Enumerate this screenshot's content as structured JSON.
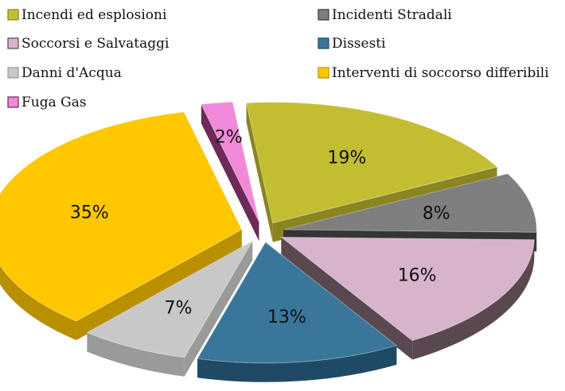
{
  "chart_data": {
    "type": "pie",
    "style": "3d-exploded",
    "legend_position": "top",
    "title": "",
    "slices": [
      {
        "label": "Incendi ed esplosioni",
        "value": 19,
        "display": "19%",
        "color": "#c3bd32",
        "side_color": "#8a8520"
      },
      {
        "label": "Incidenti Stradali",
        "value": 8,
        "display": "8%",
        "color": "#7f7f7f",
        "side_color": "#353535"
      },
      {
        "label": "Soccorsi e Salvataggi",
        "value": 16,
        "display": "16%",
        "color": "#d7b3cc",
        "side_color": "#5a4850"
      },
      {
        "label": "Dissesti",
        "value": 13,
        "display": "13%",
        "color": "#3a7699",
        "side_color": "#1f4a66"
      },
      {
        "label": "Danni d'Acqua",
        "value": 7,
        "display": "7%",
        "color": "#c8c8c8",
        "side_color": "#9a9a9a"
      },
      {
        "label": "Interventi di soccorso differibili",
        "value": 35,
        "display": "35%",
        "color": "#fec700",
        "side_color": "#b98f00"
      },
      {
        "label": "Fuga Gas",
        "value": 2,
        "display": "2%",
        "color": "#f08ad8",
        "side_color": "#6e2a58"
      }
    ],
    "legend_order": [
      0,
      1,
      2,
      3,
      4,
      5,
      6
    ]
  }
}
